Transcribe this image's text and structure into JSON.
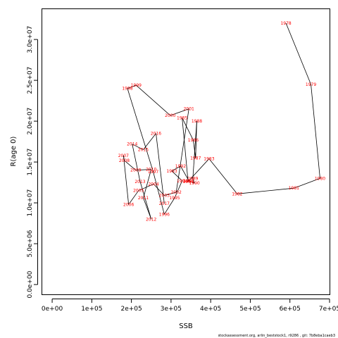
{
  "chart_data": {
    "type": "line",
    "xlabel": "SSB",
    "ylabel": "R(age 0)",
    "xlim": [
      -25000,
      700000
    ],
    "ylim": [
      -1200000,
      33800000
    ],
    "x_ticks": [
      {
        "value": 0,
        "label": "0e+00"
      },
      {
        "value": 100000,
        "label": "1e+05"
      },
      {
        "value": 200000,
        "label": "2e+05"
      },
      {
        "value": 300000,
        "label": "3e+05"
      },
      {
        "value": 400000,
        "label": "4e+05"
      },
      {
        "value": 500000,
        "label": "5e+05"
      },
      {
        "value": 600000,
        "label": "6e+05"
      },
      {
        "value": 700000,
        "label": "7e+05"
      }
    ],
    "y_ticks": [
      {
        "value": 0,
        "label": "0.0e+00"
      },
      {
        "value": 5000000,
        "label": "5.0e+06"
      },
      {
        "value": 10000000,
        "label": "1.0e+07"
      },
      {
        "value": 15000000,
        "label": "1.5e+07"
      },
      {
        "value": 20000000,
        "label": "2.0e+07"
      },
      {
        "value": 25000000,
        "label": "2.5e+07"
      },
      {
        "value": 30000000,
        "label": "3.0e+07"
      }
    ],
    "series": [
      {
        "points": [
          {
            "year": "1978",
            "x": 590000,
            "y": 32000000
          },
          {
            "year": "1979",
            "x": 653000,
            "y": 24500000
          },
          {
            "year": "1980",
            "x": 676000,
            "y": 13000000
          },
          {
            "year": "1981",
            "x": 610000,
            "y": 11800000
          },
          {
            "year": "1982",
            "x": 467000,
            "y": 11100000
          },
          {
            "year": "1983",
            "x": 396000,
            "y": 15400000
          },
          {
            "year": "1984",
            "x": 343000,
            "y": 12600000
          },
          {
            "year": "1985",
            "x": 328000,
            "y": 20400000
          },
          {
            "year": "1986",
            "x": 356000,
            "y": 17700000
          },
          {
            "year": "1987",
            "x": 362000,
            "y": 15500000
          },
          {
            "year": "1988",
            "x": 365000,
            "y": 20000000
          },
          {
            "year": "1989",
            "x": 355000,
            "y": 13000000
          },
          {
            "year": "1990",
            "x": 359000,
            "y": 12400000
          },
          {
            "year": "1991",
            "x": 345000,
            "y": 12700000
          },
          {
            "year": "1992",
            "x": 324000,
            "y": 14500000
          },
          {
            "year": "1993",
            "x": 302000,
            "y": 13900000
          },
          {
            "year": "1994",
            "x": 328000,
            "y": 12700000
          },
          {
            "year": "1995",
            "x": 309000,
            "y": 10600000
          },
          {
            "year": "1996",
            "x": 283000,
            "y": 8600000
          },
          {
            "year": "1997",
            "x": 255000,
            "y": 13800000
          },
          {
            "year": "1998",
            "x": 190000,
            "y": 24000000
          },
          {
            "year": "1999",
            "x": 212000,
            "y": 24400000
          },
          {
            "year": "2000",
            "x": 298000,
            "y": 20700000
          },
          {
            "year": "2001",
            "x": 345000,
            "y": 21500000
          },
          {
            "year": "2002",
            "x": 313000,
            "y": 11300000
          },
          {
            "year": "2003",
            "x": 283000,
            "y": 10900000
          },
          {
            "year": "2004",
            "x": 256000,
            "y": 12300000
          },
          {
            "year": "2005",
            "x": 218000,
            "y": 11500000
          },
          {
            "year": "2006",
            "x": 193000,
            "y": 9800000
          },
          {
            "year": "2007",
            "x": 180000,
            "y": 15800000
          },
          {
            "year": "2008",
            "x": 182000,
            "y": 15200000
          },
          {
            "year": "2009",
            "x": 211000,
            "y": 14000000
          },
          {
            "year": "2010",
            "x": 250000,
            "y": 14100000
          },
          {
            "year": "2011",
            "x": 230000,
            "y": 10600000
          },
          {
            "year": "2012",
            "x": 250000,
            "y": 8000000
          },
          {
            "year": "2013",
            "x": 222000,
            "y": 12600000
          },
          {
            "year": "2014",
            "x": 202000,
            "y": 17200000
          },
          {
            "year": "2015",
            "x": 230000,
            "y": 16500000
          },
          {
            "year": "2016",
            "x": 262000,
            "y": 18500000
          },
          {
            "year": "2017",
            "x": 283000,
            "y": 9900000
          }
        ]
      }
    ],
    "grid": false,
    "line_color": "#000000",
    "label_color": "#ff0000"
  },
  "footer": {
    "text": "stockassessment.org, arlin_beststock1, r9286 , git: 7b8eba1caeb3"
  }
}
